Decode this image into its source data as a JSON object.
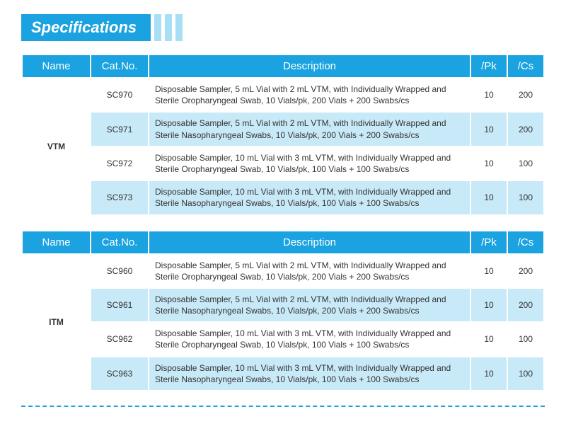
{
  "header": {
    "title": "Specifications"
  },
  "colors": {
    "primary": "#1aa3e0",
    "light": "#a7dff5",
    "row_alt": "#c8e9f7",
    "white": "#ffffff",
    "text": "#333333"
  },
  "columns": [
    "Name",
    "Cat.No.",
    "Description",
    "/Pk",
    "/Cs"
  ],
  "tables": [
    {
      "name": "VTM",
      "rows": [
        {
          "cat": "SC970",
          "desc": "Disposable Sampler, 5 mL Vial with 2 mL VTM, with Individually Wrapped and Sterile Oropharyngeal Swab, 10 Vials/pk, 200 Vials + 200 Swabs/cs",
          "pk": "10",
          "cs": "200"
        },
        {
          "cat": "SC971",
          "desc": "Disposable Sampler, 5 mL Vial with 2 mL VTM, with Individually Wrapped and Sterile Nasopharyngeal Swabs, 10 Vials/pk, 200 Vials + 200 Swabs/cs",
          "pk": "10",
          "cs": "200"
        },
        {
          "cat": "SC972",
          "desc": "Disposable Sampler, 10 mL Vial with 3 mL VTM, with Individually Wrapped and Sterile Oropharyngeal Swab, 10 Vials/pk, 100 Vials + 100 Swabs/cs",
          "pk": "10",
          "cs": "100"
        },
        {
          "cat": "SC973",
          "desc": "Disposable Sampler, 10 mL Vial with 3 mL VTM, with Individually Wrapped and Sterile Nasopharyngeal Swabs, 10 Vials/pk, 100 Vials + 100 Swabs/cs",
          "pk": "10",
          "cs": "100"
        }
      ]
    },
    {
      "name": "ITM",
      "rows": [
        {
          "cat": "SC960",
          "desc": "Disposable Sampler, 5 mL Vial with 2 mL VTM, with Individually Wrapped and Sterile Oropharyngeal Swab, 10 Vials/pk, 200 Vials + 200 Swabs/cs",
          "pk": "10",
          "cs": "200"
        },
        {
          "cat": "SC961",
          "desc": "Disposable Sampler, 5 mL Vial with 2 mL VTM, with Individually Wrapped and Sterile Nasopharyngeal Swabs, 10 Vials/pk, 200 Vials + 200 Swabs/cs",
          "pk": "10",
          "cs": "200"
        },
        {
          "cat": "SC962",
          "desc": "Disposable Sampler, 10 mL Vial with 3 mL VTM, with Individually Wrapped and Sterile Oropharyngeal Swab, 10 Vials/pk, 100 Vials + 100 Swabs/cs",
          "pk": "10",
          "cs": "100"
        },
        {
          "cat": "SC963",
          "desc": "Disposable Sampler, 10 mL Vial with 3 mL VTM, with Individually Wrapped and Sterile Nasopharyngeal Swabs, 10 Vials/pk, 100 Vials + 100 Swabs/cs",
          "pk": "10",
          "cs": "100"
        }
      ]
    }
  ]
}
